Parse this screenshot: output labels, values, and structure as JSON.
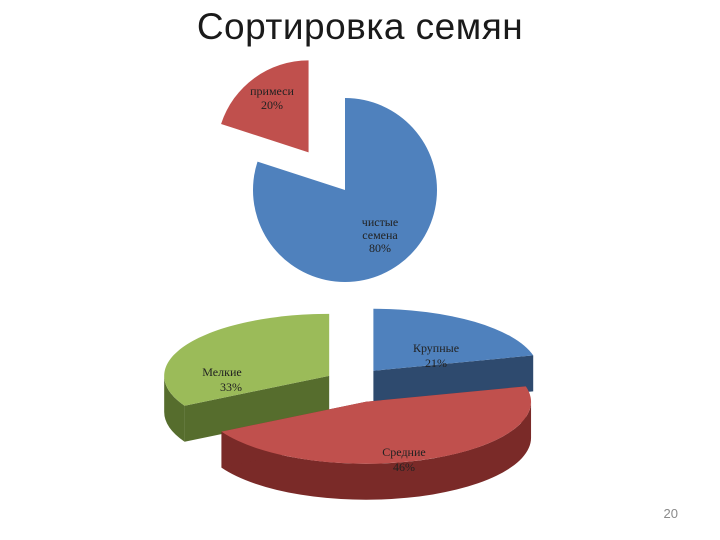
{
  "title": "Сортировка семян",
  "page_number": "20",
  "colors": {
    "blue": "#4F81BD",
    "blue_dark": "#2E4A6E",
    "red": "#C0504D",
    "red_dark": "#7A2A28",
    "green": "#9BBB59",
    "green_dark": "#566D2D"
  },
  "chart_data": [
    {
      "type": "pie",
      "title": "",
      "slices": [
        {
          "label": "чистые семена",
          "value": 80,
          "value_label": "80%",
          "color": "#4F81BD",
          "exploded": false
        },
        {
          "label": "примеси",
          "value": 20,
          "value_label": "20%",
          "color": "#C0504D",
          "exploded": true
        }
      ]
    },
    {
      "type": "pie",
      "subtype": "3d-exploded",
      "title": "",
      "slices": [
        {
          "label": "Крупные",
          "value": 21,
          "value_label": "21%",
          "color": "#4F81BD"
        },
        {
          "label": "Средние",
          "value": 46,
          "value_label": "46%",
          "color": "#C0504D"
        },
        {
          "label": "Мелкие",
          "value": 33,
          "value_label": "33%",
          "color": "#9BBB59"
        }
      ]
    }
  ]
}
